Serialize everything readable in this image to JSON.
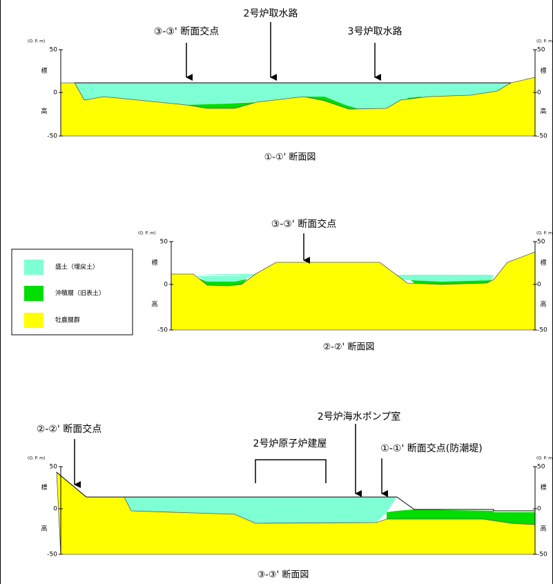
{
  "sections": [
    {
      "title": "①-①' 断面図",
      "axis_unit": "(O. P. m)",
      "ticks": [
        "50",
        "0",
        "-50"
      ],
      "axis_label": [
        "標",
        "高"
      ],
      "annotations": [
        "③-③' 断面交点",
        "2号炉取水路",
        "3号炉取水路"
      ]
    },
    {
      "title": "②-②' 断面図",
      "axis_unit": "(O. P. m)",
      "ticks": [
        "50",
        "0",
        "-50"
      ],
      "axis_label": [
        "標",
        "高"
      ],
      "annotations": [
        "③-③' 断面交点"
      ]
    },
    {
      "title": "③-③' 断面図",
      "axis_unit": "(O. P. m)",
      "ticks": [
        "50",
        "0",
        "-50"
      ],
      "axis_label": [
        "標",
        "高"
      ],
      "annotations": [
        "②-②' 断面交点",
        "2号炉原子炉建屋",
        "2号炉海水ポンプ室",
        "①-①' 断面交点(防潮堤)"
      ]
    }
  ],
  "legend": [
    {
      "label": "盛土（埋戻土）"
    },
    {
      "label": "沖積層（旧表土）"
    },
    {
      "label": "牡鹿層群"
    }
  ]
}
